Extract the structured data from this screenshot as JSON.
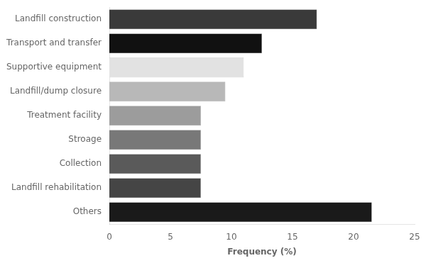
{
  "chart_data": {
    "type": "bar",
    "orientation": "horizontal",
    "categories": [
      "Others",
      "Landfill rehabilitation",
      "Collection",
      "Stroage",
      "Treatment facility",
      "Landfill/dump closure",
      "Supportive equipment",
      "Transport and transfer",
      "Landfill construction"
    ],
    "values": [
      21.5,
      7.5,
      7.5,
      7.5,
      7.5,
      9.5,
      11.0,
      12.5,
      17.0
    ],
    "colors": [
      "#1a1a1a",
      "#454545",
      "#5a5a5a",
      "#787878",
      "#9c9c9c",
      "#b8b8b8",
      "#e2e2e2",
      "#111111",
      "#3a3a3a"
    ],
    "xlabel": "Frequency (%)",
    "xlim": [
      0,
      25
    ],
    "xticks": [
      0,
      5,
      10,
      15,
      20,
      25
    ],
    "grid": false
  }
}
